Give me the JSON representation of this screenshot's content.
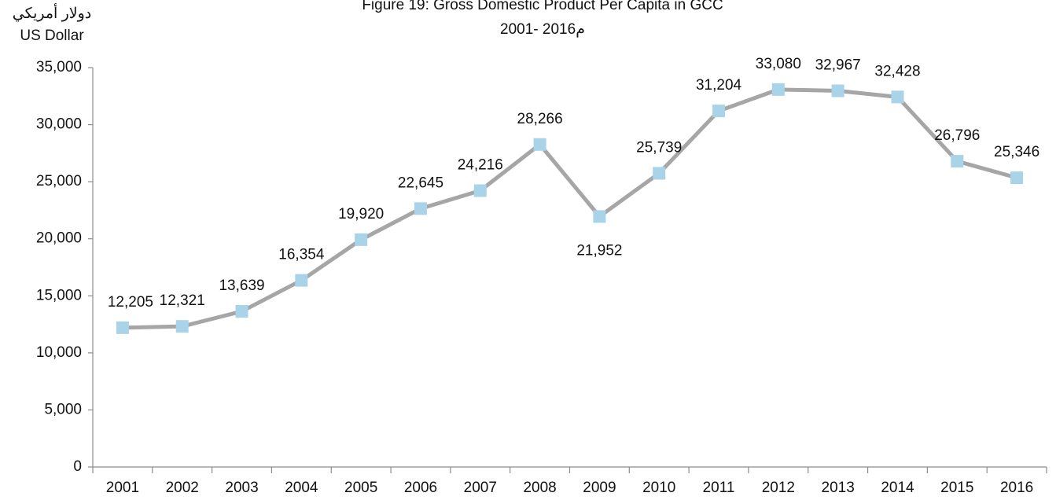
{
  "chart_data": {
    "type": "line",
    "title": "Figure 19: Gross Domestic Product Per Capita in GCC",
    "subtitle": "2001- 2016م",
    "ylabel": [
      "دولار أمريكي",
      "US Dollar"
    ],
    "categories": [
      "2001",
      "2002",
      "2003",
      "2004",
      "2005",
      "2006",
      "2007",
      "2008",
      "2009",
      "2010",
      "2011",
      "2012",
      "2013",
      "2014",
      "2015",
      "2016"
    ],
    "series": [
      {
        "color": "#a6a6a6",
        "marker_color": "#a9d3e9",
        "values": [
          12205,
          12321,
          13639,
          16354,
          19920,
          22645,
          24216,
          28266,
          21952,
          25739,
          31204,
          33080,
          32967,
          32428,
          26796,
          25346
        ],
        "value_labels": [
          "12,205",
          "12,321",
          "13,639",
          "16,354",
          "19,920",
          "22,645",
          "24,216",
          "28,266",
          "21,952",
          "25,739",
          "31,204",
          "33,080",
          "32,967",
          "32,428",
          "26,796",
          "25,346"
        ]
      }
    ],
    "ylim": [
      0,
      35000
    ],
    "yticks": [
      0,
      {
        "value": 5000,
        "label": "5,000"
      },
      {
        "value": 10000,
        "label": "10,000"
      },
      {
        "value": 15000,
        "label": "15,000"
      },
      {
        "value": 20000,
        "label": "20,000"
      },
      {
        "value": 25000,
        "label": "25,000"
      },
      {
        "value": 30000,
        "label": "30,000"
      },
      {
        "value": 35000,
        "label": "35,000"
      }
    ],
    "grid": false
  }
}
